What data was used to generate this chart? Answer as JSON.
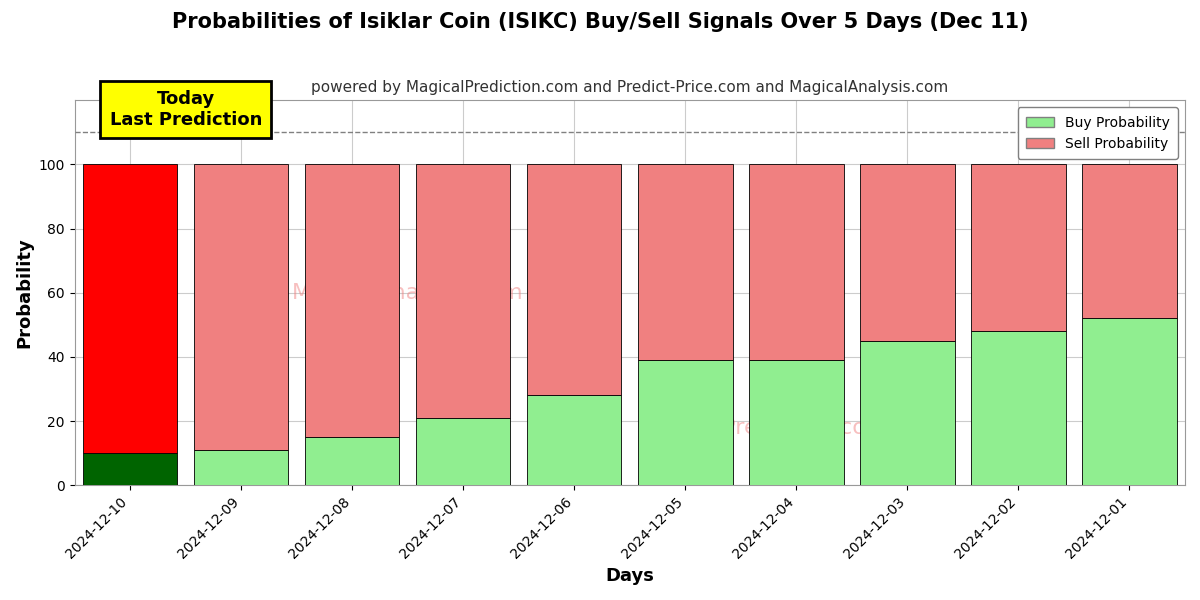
{
  "title": "Probabilities of Isiklar Coin (ISIKC) Buy/Sell Signals Over 5 Days (Dec 11)",
  "subtitle": "powered by MagicalPrediction.com and Predict-Price.com and MagicalAnalysis.com",
  "xlabel": "Days",
  "ylabel": "Probability",
  "categories": [
    "2024-12-10",
    "2024-12-09",
    "2024-12-08",
    "2024-12-07",
    "2024-12-06",
    "2024-12-05",
    "2024-12-04",
    "2024-12-03",
    "2024-12-02",
    "2024-12-01"
  ],
  "buy_values": [
    10,
    11,
    15,
    21,
    28,
    39,
    39,
    45,
    48,
    52
  ],
  "sell_values": [
    90,
    89,
    85,
    79,
    72,
    61,
    61,
    55,
    52,
    48
  ],
  "buy_color_today": "#006400",
  "sell_color_today": "#ff0000",
  "buy_color_normal": "#90ee90",
  "sell_color_normal": "#f08080",
  "today_annotation": "Today\nLast Prediction",
  "ylim": [
    0,
    120
  ],
  "dashed_line_y": 110,
  "legend_buy": "Buy Probability",
  "legend_sell": "Sell Probability",
  "background_color": "#ffffff",
  "grid_color": "#cccccc",
  "title_fontsize": 15,
  "subtitle_fontsize": 11,
  "axis_label_fontsize": 13,
  "tick_fontsize": 10,
  "annotation_fontsize": 13
}
